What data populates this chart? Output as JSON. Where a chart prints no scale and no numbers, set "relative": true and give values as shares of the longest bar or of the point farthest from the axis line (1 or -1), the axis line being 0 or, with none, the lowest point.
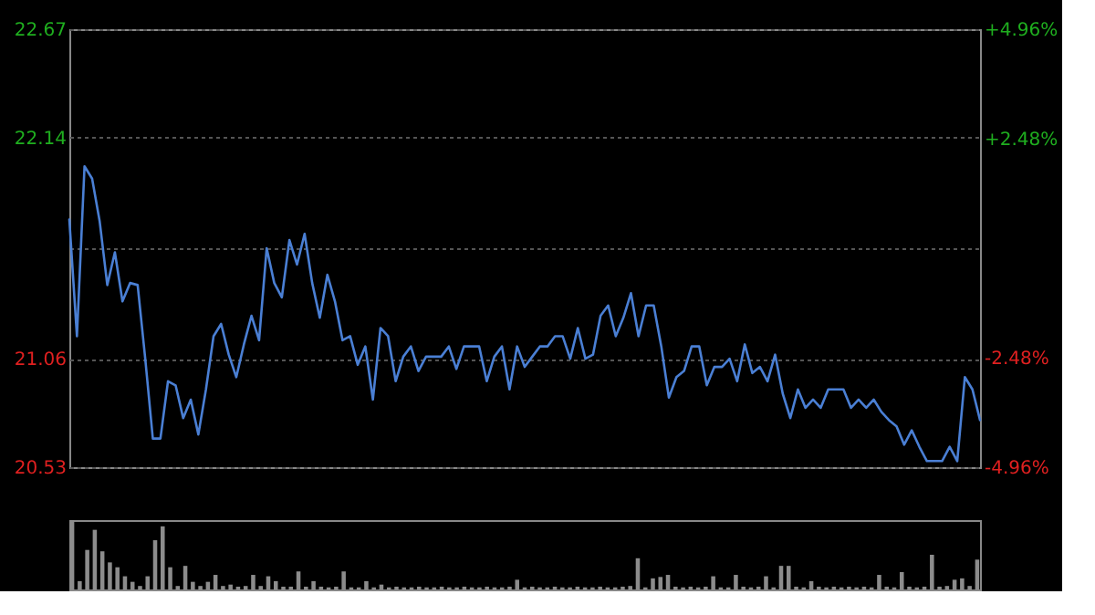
{
  "chart_data": [
    {
      "type": "line",
      "categories": [
        null,
        null,
        null,
        null,
        null,
        null,
        null,
        null,
        null,
        null,
        null,
        null,
        null,
        null,
        null,
        null,
        null,
        null,
        null,
        null,
        null,
        null,
        null,
        null,
        null,
        null,
        null,
        null,
        null,
        null,
        null,
        null,
        null,
        null,
        null,
        null,
        null,
        null,
        null,
        null,
        null,
        null,
        null,
        null,
        null,
        null,
        null,
        null,
        null,
        null,
        null,
        null,
        null,
        null,
        null,
        null,
        null,
        null,
        null,
        null,
        null,
        null,
        null,
        null,
        null,
        null,
        null,
        null,
        null,
        null,
        null,
        null,
        null,
        null,
        null,
        null,
        null,
        null,
        null,
        null,
        null,
        null,
        null,
        null,
        null,
        null,
        null,
        null,
        null,
        null,
        null,
        null,
        null,
        null,
        null,
        null,
        null,
        null,
        null,
        null,
        null,
        null,
        null,
        null,
        null,
        null,
        null,
        null,
        null,
        null,
        null,
        null,
        null,
        null,
        null,
        null,
        null,
        null,
        null,
        null,
        null
      ],
      "series": [
        {
          "color": "#4a7fd4",
          "values": [
            21.74,
            21.17,
            22.0,
            21.94,
            21.73,
            21.42,
            21.58,
            21.34,
            21.43,
            21.42,
            21.06,
            20.67,
            20.67,
            20.95,
            20.93,
            20.77,
            20.86,
            20.69,
            20.91,
            21.17,
            21.23,
            21.08,
            20.97,
            21.13,
            21.27,
            21.15,
            21.6,
            21.43,
            21.36,
            21.64,
            21.52,
            21.67,
            21.43,
            21.26,
            21.47,
            21.34,
            21.15,
            21.17,
            21.03,
            21.12,
            20.86,
            21.21,
            21.17,
            20.95,
            21.07,
            21.12,
            21.0,
            21.07,
            21.07,
            21.07,
            21.12,
            21.01,
            21.12,
            21.12,
            21.12,
            20.95,
            21.07,
            21.12,
            20.91,
            21.12,
            21.02,
            21.07,
            21.12,
            21.12,
            21.17,
            21.17,
            21.06,
            21.21,
            21.06,
            21.08,
            21.27,
            21.32,
            21.17,
            21.26,
            21.38,
            21.17,
            21.32,
            21.32,
            21.12,
            20.87,
            20.97,
            21.0,
            21.12,
            21.12,
            20.93,
            21.02,
            21.02,
            21.06,
            20.95,
            21.13,
            20.99,
            21.02,
            20.95,
            21.08,
            20.89,
            20.77,
            20.91,
            20.82,
            20.86,
            20.82,
            20.91,
            20.91,
            20.91,
            20.82,
            20.86,
            20.82,
            20.86,
            20.8,
            20.76,
            20.73,
            20.64,
            20.71,
            20.63,
            20.56,
            20.56,
            20.56,
            20.63,
            20.56,
            20.97,
            20.91,
            20.76
          ]
        }
      ],
      "ylim": [
        20.53,
        22.67
      ],
      "yticks": [
        20.53,
        21.06,
        {
          "value": 21.6,
          "label": null
        },
        22.14,
        22.67
      ],
      "y2lim": [
        -4.96,
        4.96
      ],
      "y2ticks": [
        {
          "value": -4.96,
          "label": "-4.96%"
        },
        {
          "value": -2.48,
          "label": "-2.48%"
        },
        {
          "value": 0,
          "label": null
        },
        {
          "value": 2.48,
          "label": "+2.48%"
        },
        {
          "value": 4.96,
          "label": "+4.96%"
        }
      ],
      "tick_labels": "y",
      "grid": "y"
    },
    {
      "type": "bar",
      "relative": true,
      "categories": [
        null,
        null,
        null,
        null,
        null,
        null,
        null,
        null,
        null,
        null,
        null,
        null,
        null,
        null,
        null,
        null,
        null,
        null,
        null,
        null,
        null,
        null,
        null,
        null,
        null,
        null,
        null,
        null,
        null,
        null,
        null,
        null,
        null,
        null,
        null,
        null,
        null,
        null,
        null,
        null,
        null,
        null,
        null,
        null,
        null,
        null,
        null,
        null,
        null,
        null,
        null,
        null,
        null,
        null,
        null,
        null,
        null,
        null,
        null,
        null,
        null,
        null,
        null,
        null,
        null,
        null,
        null,
        null,
        null,
        null,
        null,
        null,
        null,
        null,
        null,
        null,
        null,
        null,
        null,
        null,
        null,
        null,
        null,
        null,
        null,
        null,
        null,
        null,
        null,
        null,
        null,
        null,
        null,
        null,
        null,
        null,
        null,
        null,
        null,
        null,
        null,
        null,
        null,
        null,
        null,
        null,
        null,
        null,
        null,
        null,
        null,
        null,
        null,
        null,
        null,
        null,
        null,
        null,
        null,
        null,
        null
      ],
      "series": [
        {
          "color": "#8c8c8c",
          "values": [
            1.0,
            0.12,
            0.57,
            0.86,
            0.55,
            0.39,
            0.32,
            0.19,
            0.11,
            0.05,
            0.19,
            0.71,
            0.91,
            0.32,
            0.05,
            0.34,
            0.11,
            0.05,
            0.11,
            0.21,
            0.05,
            0.07,
            0.04,
            0.05,
            0.21,
            0.05,
            0.19,
            0.12,
            0.04,
            0.04,
            0.26,
            0.04,
            0.12,
            0.04,
            0.03,
            0.04,
            0.26,
            0.03,
            0.03,
            0.12,
            0.03,
            0.07,
            0.03,
            0.04,
            0.03,
            0.03,
            0.04,
            0.03,
            0.03,
            0.04,
            0.03,
            0.03,
            0.04,
            0.03,
            0.03,
            0.04,
            0.03,
            0.03,
            0.04,
            0.14,
            0.03,
            0.04,
            0.03,
            0.03,
            0.04,
            0.03,
            0.03,
            0.04,
            0.03,
            0.03,
            0.04,
            0.03,
            0.03,
            0.04,
            0.05,
            0.45,
            0.03,
            0.16,
            0.18,
            0.21,
            0.04,
            0.03,
            0.04,
            0.03,
            0.04,
            0.19,
            0.03,
            0.03,
            0.21,
            0.04,
            0.03,
            0.04,
            0.19,
            0.03,
            0.34,
            0.34,
            0.04,
            0.03,
            0.12,
            0.04,
            0.03,
            0.04,
            0.03,
            0.04,
            0.03,
            0.04,
            0.03,
            0.21,
            0.04,
            0.03,
            0.25,
            0.04,
            0.03,
            0.04,
            0.5,
            0.04,
            0.05,
            0.14,
            0.16,
            0.05,
            0.43
          ]
        }
      ],
      "tick_labels": false
    }
  ]
}
